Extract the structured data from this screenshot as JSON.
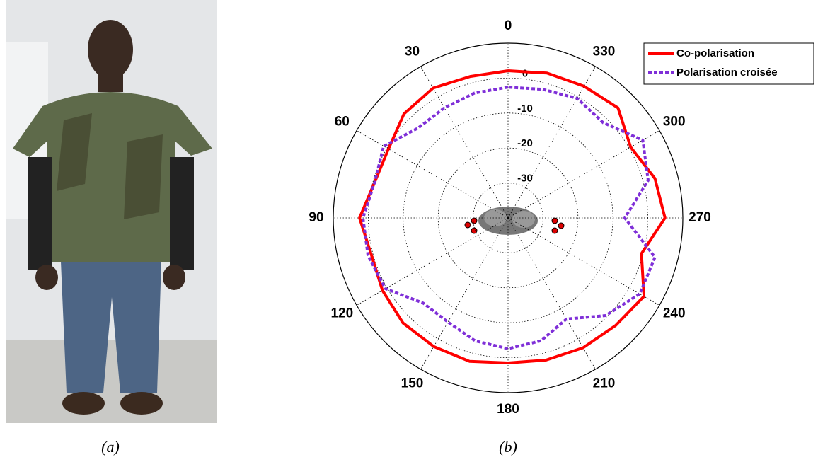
{
  "chart_data": {
    "type": "polar",
    "theta": [
      0,
      15,
      30,
      45,
      60,
      75,
      90,
      105,
      120,
      135,
      150,
      165,
      180,
      195,
      210,
      225,
      240,
      255,
      270,
      285,
      300,
      315,
      330,
      345,
      360
    ],
    "series": [
      {
        "name": "Co-polarisation",
        "color": "#ff0000",
        "style": "solid",
        "values": [
          2.1,
          1.9,
          2.9,
          2.1,
          -0.5,
          -0.5,
          2.5,
          0.5,
          1.5,
          2.5,
          2.5,
          2.5,
          1.5,
          2.1,
          2.9,
          3.5,
          4.9,
          -0.5,
          4.9,
          3.5,
          0.5,
          4.5,
          3.5,
          2.9,
          2.1
        ]
      },
      {
        "name": "Polarisation croisée",
        "color": "#7f2fd8",
        "style": "dotted",
        "values": [
          -2.6,
          -3.0,
          -3.6,
          -3.6,
          1.1,
          -0.5,
          1.5,
          1.5,
          0.5,
          -5.6,
          -5.6,
          -3.6,
          -2.6,
          -3.6,
          -6.6,
          -0.5,
          3.5,
          3.5,
          -6.6,
          1.5,
          4.5,
          -1.5,
          -0.5,
          -1.9,
          -2.6
        ]
      }
    ],
    "rlim": [
      -40,
      10
    ],
    "rticks": [
      -30,
      -20,
      -10,
      0
    ],
    "thetaticks": [
      0,
      30,
      60,
      90,
      120,
      150,
      180,
      210,
      240,
      270,
      300,
      330
    ],
    "legend": "top-right",
    "captions": [
      "(a)",
      "(b)"
    ]
  }
}
